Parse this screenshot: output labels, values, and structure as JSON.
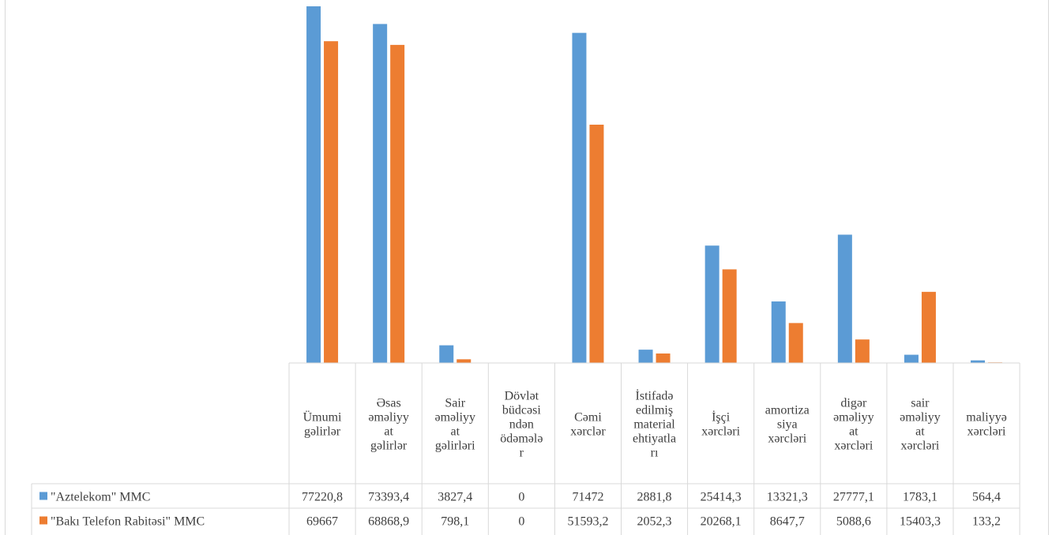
{
  "chart_data": {
    "type": "bar",
    "title": "",
    "xlabel": "",
    "ylabel": "",
    "ylim": [
      0,
      77220.8
    ],
    "grid": false,
    "legend_placement": "data-table",
    "categories": [
      [
        "Ümumi",
        "gəlirlər"
      ],
      [
        "Əsas",
        "əməliyy",
        "at",
        "gəlirlər"
      ],
      [
        "Sair",
        "əməliyy",
        "at",
        "gəlirləri"
      ],
      [
        "Dövlət",
        "büdcəsi",
        "ndən",
        "ödəmələ",
        "r"
      ],
      [
        "Cəmi",
        "xərclər"
      ],
      [
        "İstifadə",
        "edilmiş",
        "material",
        "ehtiyatla",
        "rı"
      ],
      [
        "İşçi",
        "xərcləri"
      ],
      [
        "amortiza",
        "siya",
        "xərcləri"
      ],
      [
        "digər",
        "əməliyy",
        "at",
        "xərcləri"
      ],
      [
        "sair",
        "əməliyy",
        "at",
        "xərcləri"
      ],
      [
        "maliyyə",
        "xərcləri"
      ]
    ],
    "series": [
      {
        "name": "\"Aztelekom\" MMC",
        "color": "#5b9bd5",
        "values": [
          77220.8,
          73393.4,
          3827.4,
          0,
          71472,
          2881.8,
          25414.3,
          13321.3,
          27777.1,
          1783.1,
          564.4
        ],
        "labels": [
          "77220,8",
          "73393,4",
          "3827,4",
          "0",
          "71472",
          "2881,8",
          "25414,3",
          "13321,3",
          "27777,1",
          "1783,1",
          "564,4"
        ]
      },
      {
        "name": "\"Bakı Telefon Rabitəsi\" MMC",
        "color": "#ed7d31",
        "values": [
          69667,
          68868.9,
          798.1,
          0,
          51593.2,
          2052.3,
          20268.1,
          8647.7,
          5088.6,
          15403.3,
          133.2
        ],
        "labels": [
          "69667",
          "68868,9",
          "798,1",
          "0",
          "51593,2",
          "2052,3",
          "20268,1",
          "8647,7",
          "5088,6",
          "15403,3",
          "133,2"
        ]
      }
    ]
  }
}
